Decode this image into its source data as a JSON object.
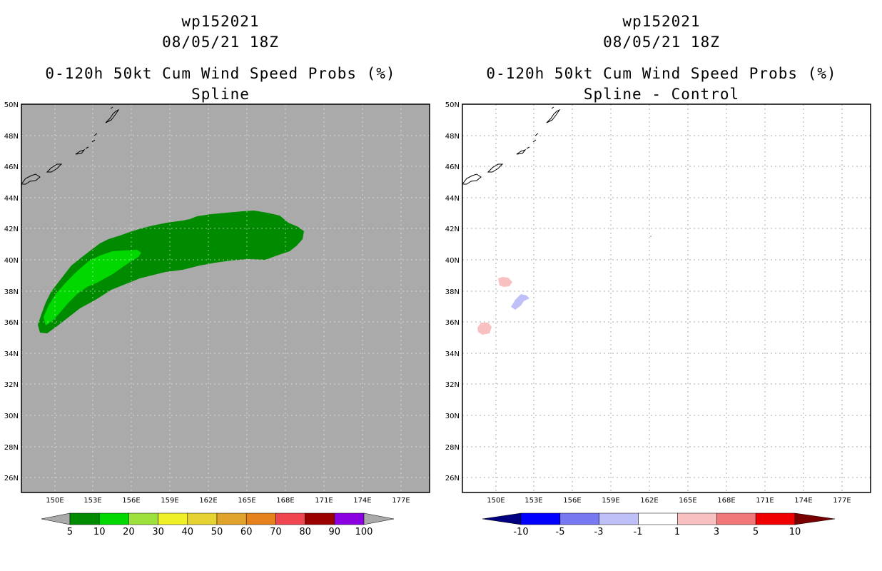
{
  "left_panel": {
    "title_line1": "wp152021",
    "title_line2": "08/05/21 18Z",
    "title_line3": "0-120h 50kt Cum Wind Speed Probs (%)",
    "title_line4": "Spline",
    "colorbar_labels": [
      "5",
      "10",
      "20",
      "30",
      "40",
      "50",
      "60",
      "70",
      "80",
      "90",
      "100"
    ],
    "colorbar_colors": [
      "#008a00",
      "#00d800",
      "#9ee03c",
      "#f0f028",
      "#e6d232",
      "#e0a42c",
      "#e6821e",
      "#f04650",
      "#9a0000",
      "#8a00e0"
    ]
  },
  "right_panel": {
    "title_line1": "wp152021",
    "title_line2": "08/05/21 18Z",
    "title_line3": "0-120h 50kt Cum Wind Speed Probs (%)",
    "title_line4": "Spline - Control",
    "colorbar_labels": [
      "-10",
      "-5",
      "-3",
      "-1",
      "1",
      "3",
      "5",
      "10"
    ],
    "colorbar_colors": [
      "#0000c8",
      "#0000ff",
      "#7878f0",
      "#c0c0f8",
      "#ffffff",
      "#f8c0c0",
      "#f07878",
      "#f00000",
      "#780000"
    ]
  },
  "map": {
    "lat_labels": [
      "50N",
      "48N",
      "46N",
      "44N",
      "42N",
      "40N",
      "38N",
      "36N",
      "34N",
      "32N",
      "30N",
      "28N",
      "26N"
    ],
    "lon_labels": [
      "150E",
      "153E",
      "156E",
      "159E",
      "162E",
      "165E",
      "168E",
      "171E",
      "174E",
      "177E"
    ]
  },
  "colors": {
    "land_mask": "#aaaaaa",
    "prob_low": "#008a00",
    "prob_mid": "#00d800",
    "diff_pos": "#f8c0c0",
    "diff_neg": "#c0c0f8"
  }
}
